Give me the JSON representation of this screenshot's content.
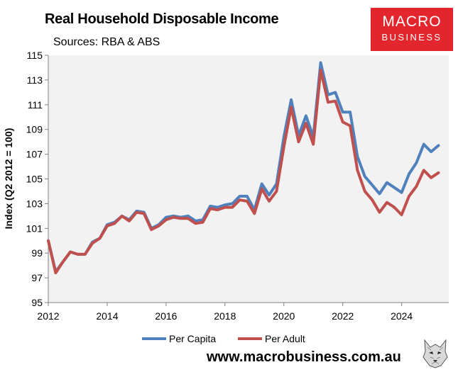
{
  "header": {
    "title": "Real Household Disposable Income",
    "subtitle": "Sources: RBA & ABS"
  },
  "logo": {
    "line1": "MACRO",
    "line2": "BUSINESS",
    "background": "#e3262d"
  },
  "footer": {
    "url": "www.macrobusiness.com.au"
  },
  "chart_data": {
    "type": "line",
    "ylabel": "Index (Q2 2012 = 100)",
    "xlabel": "",
    "xlim": [
      2012,
      2025.6
    ],
    "ylim": [
      95,
      115
    ],
    "x_ticks": [
      2012,
      2014,
      2016,
      2018,
      2020,
      2022,
      2024
    ],
    "y_ticks": [
      95,
      97,
      99,
      101,
      103,
      105,
      107,
      109,
      111,
      113,
      115
    ],
    "grid": false,
    "legend": "bottom",
    "plot_background": "#f2f2f2",
    "series": [
      {
        "name": "Per Capita",
        "color": "#4f81bd",
        "points": [
          [
            2012.0,
            100.0
          ],
          [
            2012.25,
            97.5
          ],
          [
            2012.5,
            98.3
          ],
          [
            2012.75,
            99.1
          ],
          [
            2013.0,
            98.9
          ],
          [
            2013.25,
            98.9
          ],
          [
            2013.5,
            99.9
          ],
          [
            2013.75,
            100.2
          ],
          [
            2014.0,
            101.3
          ],
          [
            2014.25,
            101.5
          ],
          [
            2014.5,
            102.0
          ],
          [
            2014.75,
            101.7
          ],
          [
            2015.0,
            102.4
          ],
          [
            2015.25,
            102.3
          ],
          [
            2015.5,
            101.0
          ],
          [
            2015.75,
            101.3
          ],
          [
            2016.0,
            101.9
          ],
          [
            2016.25,
            102.0
          ],
          [
            2016.5,
            101.9
          ],
          [
            2016.75,
            102.0
          ],
          [
            2017.0,
            101.6
          ],
          [
            2017.25,
            101.7
          ],
          [
            2017.5,
            102.8
          ],
          [
            2017.75,
            102.7
          ],
          [
            2018.0,
            102.9
          ],
          [
            2018.25,
            103.0
          ],
          [
            2018.5,
            103.6
          ],
          [
            2018.75,
            103.6
          ],
          [
            2019.0,
            102.5
          ],
          [
            2019.25,
            104.6
          ],
          [
            2019.5,
            103.7
          ],
          [
            2019.75,
            104.6
          ],
          [
            2020.0,
            108.4
          ],
          [
            2020.25,
            111.4
          ],
          [
            2020.5,
            108.5
          ],
          [
            2020.75,
            110.1
          ],
          [
            2021.0,
            108.4
          ],
          [
            2021.25,
            114.4
          ],
          [
            2021.5,
            111.8
          ],
          [
            2021.75,
            112.0
          ],
          [
            2022.0,
            110.4
          ],
          [
            2022.25,
            110.4
          ],
          [
            2022.5,
            106.8
          ],
          [
            2022.75,
            105.2
          ],
          [
            2023.0,
            104.5
          ],
          [
            2023.25,
            103.8
          ],
          [
            2023.5,
            104.7
          ],
          [
            2023.75,
            104.3
          ],
          [
            2024.0,
            103.9
          ],
          [
            2024.25,
            105.4
          ],
          [
            2024.5,
            106.3
          ],
          [
            2024.75,
            107.8
          ],
          [
            2025.0,
            107.2
          ],
          [
            2025.25,
            107.7
          ]
        ]
      },
      {
        "name": "Per Adult",
        "color": "#c0504d",
        "points": [
          [
            2012.0,
            100.0
          ],
          [
            2012.25,
            97.4
          ],
          [
            2012.5,
            98.3
          ],
          [
            2012.75,
            99.1
          ],
          [
            2013.0,
            98.9
          ],
          [
            2013.25,
            98.9
          ],
          [
            2013.5,
            99.8
          ],
          [
            2013.75,
            100.2
          ],
          [
            2014.0,
            101.2
          ],
          [
            2014.25,
            101.4
          ],
          [
            2014.5,
            102.0
          ],
          [
            2014.75,
            101.6
          ],
          [
            2015.0,
            102.3
          ],
          [
            2015.25,
            102.2
          ],
          [
            2015.5,
            100.9
          ],
          [
            2015.75,
            101.2
          ],
          [
            2016.0,
            101.7
          ],
          [
            2016.25,
            101.9
          ],
          [
            2016.5,
            101.8
          ],
          [
            2016.75,
            101.8
          ],
          [
            2017.0,
            101.4
          ],
          [
            2017.25,
            101.5
          ],
          [
            2017.5,
            102.6
          ],
          [
            2017.75,
            102.5
          ],
          [
            2018.0,
            102.7
          ],
          [
            2018.25,
            102.7
          ],
          [
            2018.5,
            103.3
          ],
          [
            2018.75,
            103.2
          ],
          [
            2019.0,
            102.2
          ],
          [
            2019.25,
            104.2
          ],
          [
            2019.5,
            103.2
          ],
          [
            2019.75,
            104.0
          ],
          [
            2020.0,
            107.6
          ],
          [
            2020.25,
            110.8
          ],
          [
            2020.5,
            108.0
          ],
          [
            2020.75,
            109.5
          ],
          [
            2021.0,
            107.8
          ],
          [
            2021.25,
            113.8
          ],
          [
            2021.5,
            111.2
          ],
          [
            2021.75,
            111.3
          ],
          [
            2022.0,
            109.6
          ],
          [
            2022.25,
            109.3
          ],
          [
            2022.5,
            105.7
          ],
          [
            2022.75,
            104.0
          ],
          [
            2023.0,
            103.3
          ],
          [
            2023.25,
            102.3
          ],
          [
            2023.5,
            103.1
          ],
          [
            2023.75,
            102.7
          ],
          [
            2024.0,
            102.1
          ],
          [
            2024.25,
            103.6
          ],
          [
            2024.5,
            104.4
          ],
          [
            2024.75,
            105.7
          ],
          [
            2025.0,
            105.1
          ],
          [
            2025.25,
            105.5
          ]
        ]
      }
    ]
  }
}
